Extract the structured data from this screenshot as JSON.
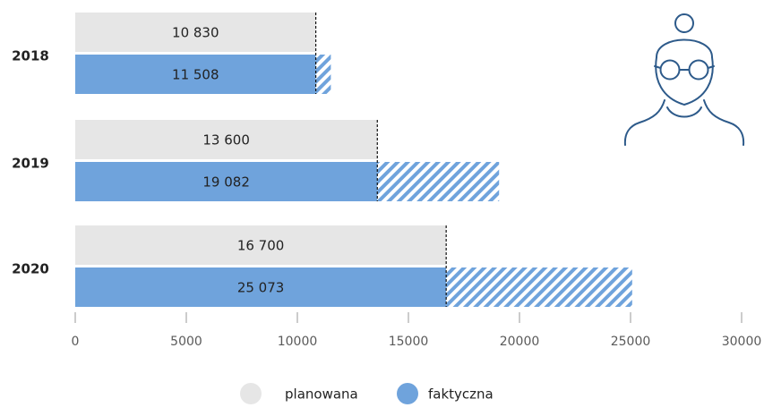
{
  "chart_data": {
    "type": "bar",
    "orientation": "horizontal",
    "categories": [
      "2018",
      "2019",
      "2020"
    ],
    "series": [
      {
        "name": "planowana",
        "values": [
          10830,
          13600,
          16700
        ],
        "labels": [
          "10 830",
          "13 600",
          "16 700"
        ],
        "color": "#e6e6e6"
      },
      {
        "name": "faktyczna",
        "values": [
          11508,
          19082,
          25073
        ],
        "labels": [
          "11 508",
          "19 082",
          "25 073"
        ],
        "color": "#6fa3dc"
      }
    ],
    "xlim": [
      0,
      30000
    ],
    "xticks": [
      0,
      5000,
      10000,
      15000,
      20000,
      25000,
      30000
    ],
    "xtick_labels": [
      "0",
      "5000",
      "10000",
      "15000",
      "20000",
      "25000",
      "30000"
    ],
    "excess_pattern": "diagonal-hatch",
    "planned_marker": "dashed-line",
    "legend_position": "bottom-center",
    "grid": false,
    "title": "",
    "xlabel": "",
    "ylabel": ""
  },
  "icon": "woman-with-glasses-icon",
  "colors": {
    "planned": "#e6e6e6",
    "actual": "#6fa3dc",
    "hatch": "#6fa3dc",
    "text": "#222222",
    "axis": "#9a9a9a",
    "icon_stroke": "#2d5a8a"
  }
}
